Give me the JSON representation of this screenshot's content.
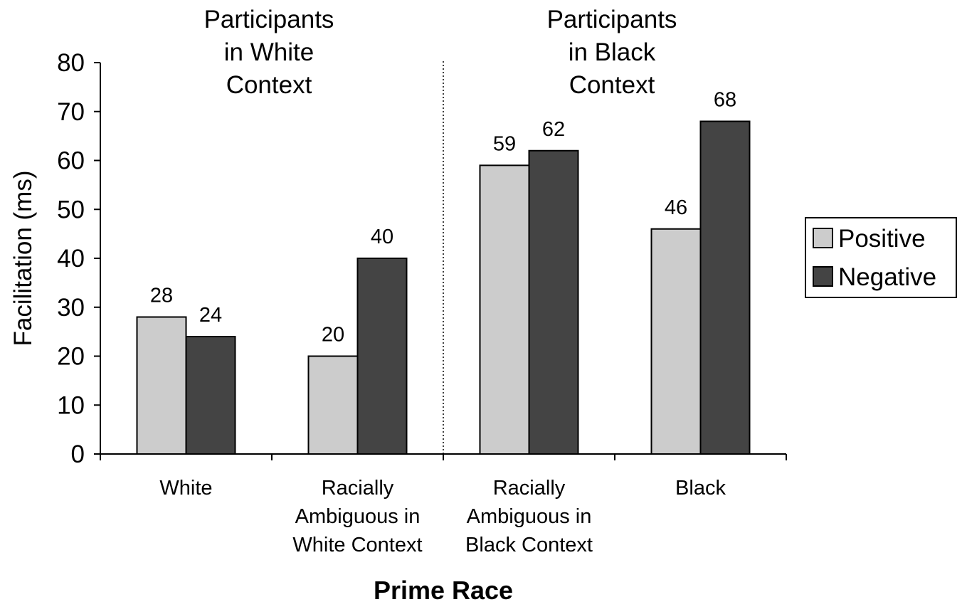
{
  "chart_data": {
    "type": "bar",
    "ylabel": "Facilitation (ms)",
    "xlabel": "Prime Race",
    "ylim": [
      0,
      80
    ],
    "yticks": [
      0,
      10,
      20,
      30,
      40,
      50,
      60,
      70,
      80
    ],
    "categories": [
      [
        "White"
      ],
      [
        "Racially",
        "Ambiguous in",
        "White Context"
      ],
      [
        "Racially",
        "Ambiguous in",
        "Black Context"
      ],
      [
        "Black"
      ]
    ],
    "series": [
      {
        "name": "Positive",
        "color": "#cccccc",
        "values": [
          28,
          20,
          59,
          46
        ],
        "labels": [
          "28",
          "20",
          "59",
          "46"
        ]
      },
      {
        "name": "Negative",
        "color": "#444444",
        "values": [
          24,
          40,
          62,
          68
        ],
        "labels": [
          "24",
          "40",
          "62",
          "68"
        ]
      }
    ],
    "group_headers": [
      [
        "Participants",
        "in White",
        "Context"
      ],
      [
        "Participants",
        "in Black",
        "Context"
      ]
    ],
    "divider": "dotted line between categories 2 and 3",
    "legend_position": "right",
    "grid": false
  }
}
